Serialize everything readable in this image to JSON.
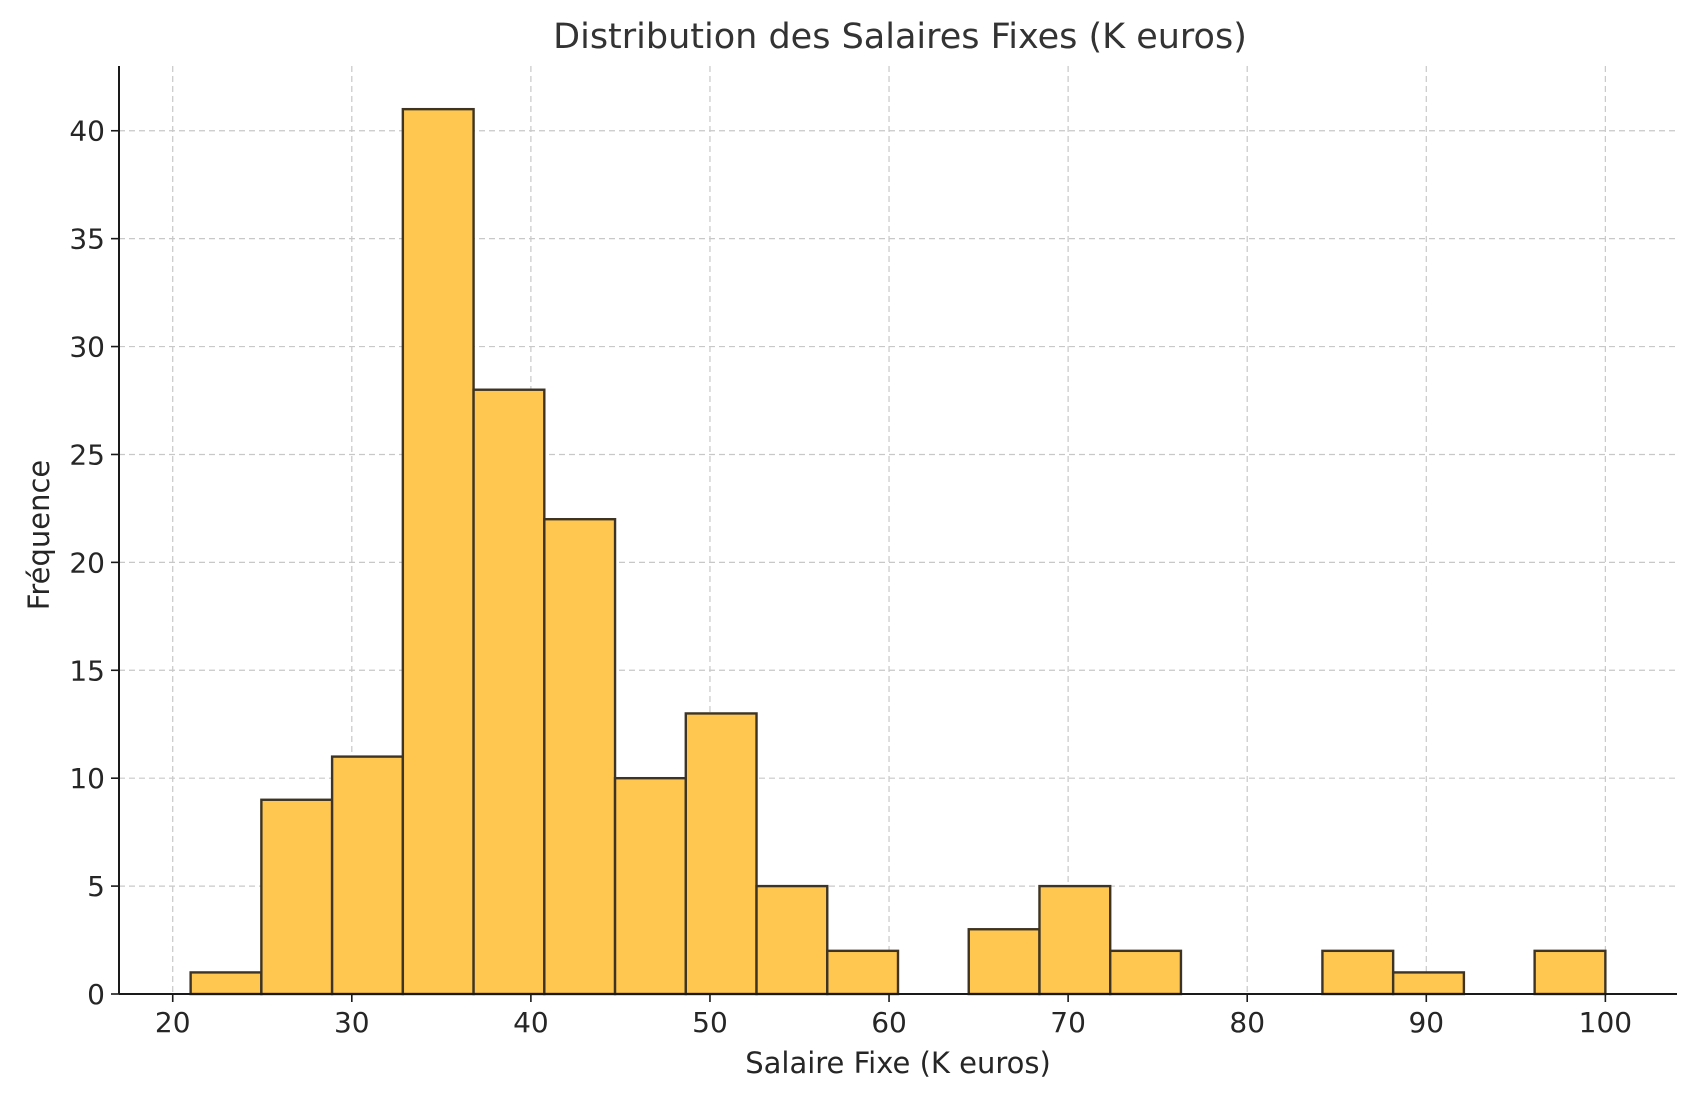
{
  "chart_data": {
    "type": "bar",
    "title": "Distribution des Salaires Fixes (K euros)",
    "xlabel": "Salaire Fixe (K euros)",
    "ylabel": "Fréquence",
    "xlim": [
      17,
      104
    ],
    "ylim": [
      0,
      43
    ],
    "x_ticks": [
      20,
      30,
      40,
      50,
      60,
      70,
      80,
      90,
      100
    ],
    "y_ticks": [
      0,
      5,
      10,
      15,
      20,
      25,
      30,
      35,
      40
    ],
    "grid": true,
    "bins": [
      {
        "x0": 21.0,
        "x1": 24.95,
        "count": 1
      },
      {
        "x0": 24.95,
        "x1": 28.9,
        "count": 9
      },
      {
        "x0": 28.9,
        "x1": 32.85,
        "count": 11
      },
      {
        "x0": 32.85,
        "x1": 36.8,
        "count": 41
      },
      {
        "x0": 36.8,
        "x1": 40.75,
        "count": 28
      },
      {
        "x0": 40.75,
        "x1": 44.7,
        "count": 22
      },
      {
        "x0": 44.7,
        "x1": 48.65,
        "count": 10
      },
      {
        "x0": 48.65,
        "x1": 52.6,
        "count": 13
      },
      {
        "x0": 52.6,
        "x1": 56.55,
        "count": 5
      },
      {
        "x0": 56.55,
        "x1": 60.5,
        "count": 2
      },
      {
        "x0": 60.5,
        "x1": 64.45,
        "count": 0
      },
      {
        "x0": 64.45,
        "x1": 68.4,
        "count": 3
      },
      {
        "x0": 68.4,
        "x1": 72.35,
        "count": 5
      },
      {
        "x0": 72.35,
        "x1": 76.3,
        "count": 2
      },
      {
        "x0": 76.3,
        "x1": 80.25,
        "count": 0
      },
      {
        "x0": 80.25,
        "x1": 84.2,
        "count": 0
      },
      {
        "x0": 84.2,
        "x1": 88.15,
        "count": 2
      },
      {
        "x0": 88.15,
        "x1": 92.1,
        "count": 1
      },
      {
        "x0": 92.1,
        "x1": 96.05,
        "count": 0
      },
      {
        "x0": 96.05,
        "x1": 100.0,
        "count": 2
      }
    ],
    "colors": {
      "bar_fill": "#ffc74f",
      "bar_edge": "#3d3425",
      "grid": "#c8c8c8"
    }
  }
}
